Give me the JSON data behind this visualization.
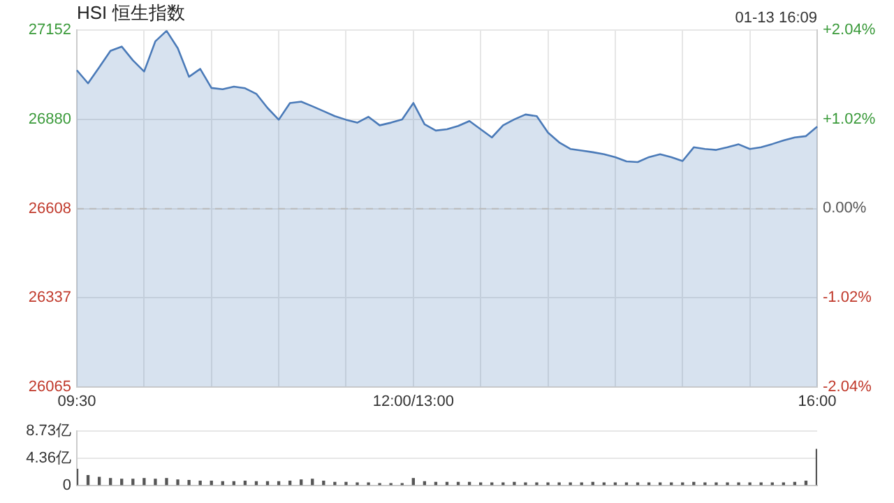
{
  "chart_data": [
    {
      "type": "area",
      "title": "HSI 恒生指数",
      "annotations": [
        "01-13 16:09"
      ],
      "legend": false,
      "grid": true,
      "marker": "none",
      "categories": [
        "09:30",
        null,
        null,
        null,
        null,
        null,
        null,
        null,
        null,
        null,
        null,
        null,
        null,
        null,
        null,
        null,
        null,
        null,
        null,
        null,
        null,
        null,
        null,
        null,
        null,
        null,
        null,
        null,
        null,
        null,
        "12:00/13:00",
        null,
        null,
        null,
        null,
        null,
        null,
        null,
        null,
        null,
        null,
        null,
        null,
        null,
        null,
        null,
        null,
        null,
        null,
        null,
        null,
        null,
        null,
        null,
        null,
        null,
        null,
        null,
        null,
        null,
        null,
        null,
        null,
        null,
        null,
        null,
        "16:00"
      ],
      "ylim": [
        26065,
        27152
      ],
      "yticks": [
        26065,
        26337,
        26608,
        26880,
        27152
      ],
      "y2lim": [
        -2.04,
        2.04
      ],
      "y2ticks": [
        {
          "value": -2.04,
          "label": "-2.04%"
        },
        {
          "value": -1.02,
          "label": "-1.02%"
        },
        {
          "value": 0,
          "label": "0.00%"
        },
        {
          "value": 1.02,
          "label": "+1.02%"
        },
        {
          "value": 2.04,
          "label": "+2.04%"
        }
      ],
      "ref_lines": [
        {
          "axis": "y",
          "value": 26608,
          "color": "#bbbbbb",
          "line_style": "dashed"
        }
      ],
      "series": [
        {
          "color": "#4a7ab8",
          "values": [
            27030,
            26990,
            27039,
            27089,
            27102,
            27060,
            27026,
            27118,
            27150,
            27097,
            27010,
            27034,
            26976,
            26972,
            26980,
            26975,
            26958,
            26915,
            26879,
            26930,
            26934,
            26920,
            26905,
            26890,
            26879,
            26870,
            26888,
            26862,
            26870,
            26880,
            26930,
            26865,
            26846,
            26850,
            26860,
            26875,
            26850,
            26825,
            26862,
            26880,
            26895,
            26890,
            26840,
            26810,
            26790,
            26785,
            26780,
            26774,
            26765,
            26752,
            26750,
            26765,
            26774,
            26765,
            26753,
            26795,
            26790,
            26787,
            26795,
            26804,
            26790,
            26795,
            26805,
            26816,
            26825,
            26829,
            26858
          ]
        }
      ]
    },
    {
      "type": "bar",
      "legend": false,
      "grid": "y",
      "tick_labels": "y",
      "categories": [
        null,
        null,
        null,
        null,
        null,
        null,
        null,
        null,
        null,
        null,
        null,
        null,
        null,
        null,
        null,
        null,
        null,
        null,
        null,
        null,
        null,
        null,
        null,
        null,
        null,
        null,
        null,
        null,
        null,
        null,
        null,
        null,
        null,
        null,
        null,
        null,
        null,
        null,
        null,
        null,
        null,
        null,
        null,
        null,
        null,
        null,
        null,
        null,
        null,
        null,
        null,
        null,
        null,
        null,
        null,
        null,
        null,
        null,
        null,
        null,
        null,
        null,
        null,
        null,
        null,
        null,
        null
      ],
      "ylim": [
        0,
        8.73
      ],
      "yticks": [
        0,
        {
          "value": 4.36,
          "label": "4.36亿"
        },
        {
          "value": 8.73,
          "label": "8.73亿"
        }
      ],
      "series": [
        {
          "color": "#555555",
          "values": [
            2.6,
            1.6,
            1.3,
            1.1,
            1.0,
            1.0,
            1.1,
            1.0,
            1.1,
            0.9,
            0.8,
            0.7,
            0.7,
            0.6,
            0.6,
            0.7,
            0.6,
            0.6,
            0.6,
            0.7,
            0.9,
            1.0,
            0.7,
            0.5,
            0.5,
            0.4,
            0.4,
            0.3,
            0.3,
            0.3,
            1.1,
            0.6,
            0.5,
            0.5,
            0.5,
            0.5,
            0.4,
            0.4,
            0.4,
            0.5,
            0.4,
            0.4,
            0.4,
            0.4,
            0.4,
            0.4,
            0.5,
            0.4,
            0.4,
            0.4,
            0.4,
            0.4,
            0.4,
            0.4,
            0.4,
            0.5,
            0.4,
            0.4,
            0.4,
            0.4,
            0.4,
            0.4,
            0.4,
            0.4,
            0.5,
            0.7,
            5.8
          ]
        }
      ]
    }
  ]
}
